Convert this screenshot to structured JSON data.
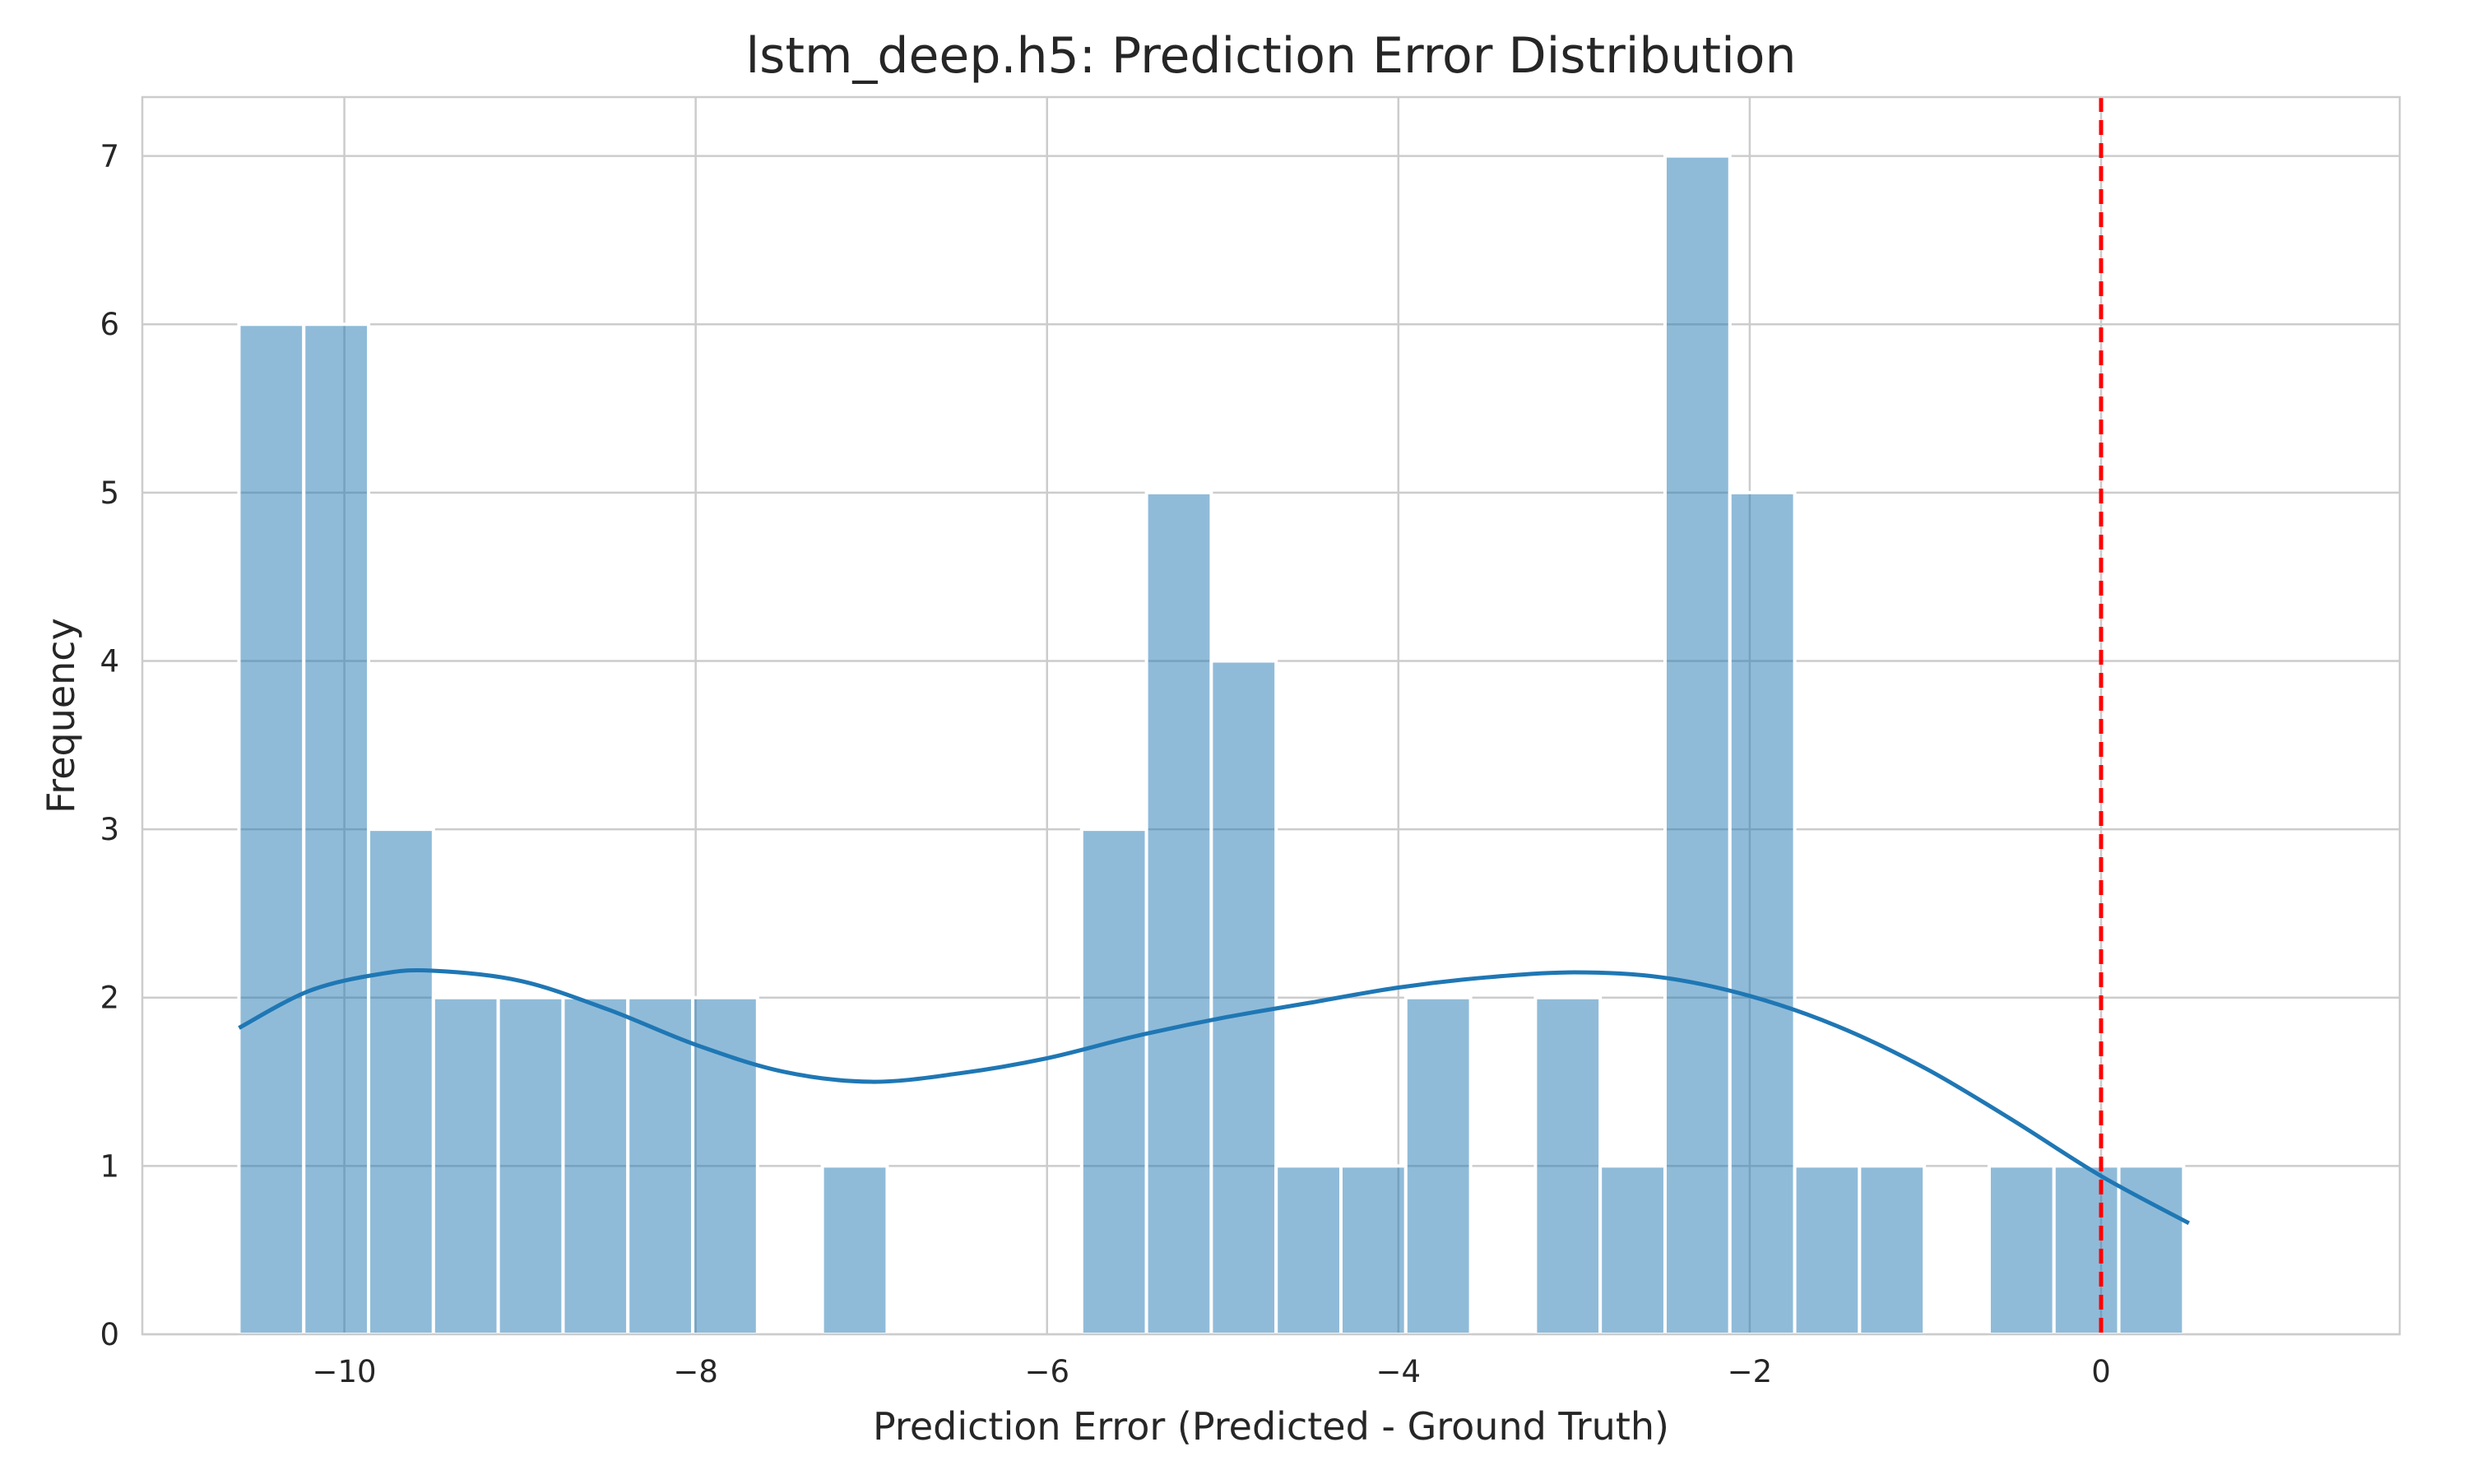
{
  "chart_data": {
    "type": "bar",
    "title": "lstm_deep.h5: Prediction Error Distribution",
    "xlabel": "Prediction Error (Predicted - Ground Truth)",
    "ylabel": "Frequency",
    "xlim": [
      -11.15,
      1.7
    ],
    "ylim": [
      0,
      7.35
    ],
    "x_ticks": [
      -10,
      -8,
      -6,
      -4,
      -2,
      0
    ],
    "x_tick_labels": [
      "−10",
      "−8",
      "−6",
      "−4",
      "−2",
      "0"
    ],
    "y_ticks": [
      0,
      1,
      2,
      3,
      4,
      5,
      6,
      7
    ],
    "y_tick_labels": [
      "0",
      "1",
      "2",
      "3",
      "4",
      "5",
      "6",
      "7"
    ],
    "grid": true,
    "bins": {
      "start": -10.6,
      "width": 0.369,
      "counts": [
        6,
        6,
        3,
        2,
        2,
        2,
        2,
        2,
        0,
        1,
        0,
        0,
        0,
        3,
        5,
        4,
        1,
        1,
        2,
        0,
        2,
        1,
        7,
        5,
        1,
        1,
        0,
        1,
        1,
        1
      ]
    },
    "kde": {
      "x": [
        -10.6,
        -10.2,
        -9.8,
        -9.5,
        -9.0,
        -8.5,
        -8.0,
        -7.5,
        -7.0,
        -6.5,
        -6.0,
        -5.5,
        -5.0,
        -4.5,
        -4.0,
        -3.5,
        -3.0,
        -2.5,
        -2.0,
        -1.5,
        -1.0,
        -0.5,
        0.0,
        0.5
      ],
      "y": [
        1.82,
        2.04,
        2.14,
        2.16,
        2.1,
        1.93,
        1.72,
        1.56,
        1.5,
        1.55,
        1.64,
        1.77,
        1.88,
        1.97,
        2.06,
        2.12,
        2.15,
        2.12,
        2.01,
        1.83,
        1.58,
        1.27,
        0.94,
        0.66
      ]
    },
    "reference_line": {
      "x": 0,
      "color": "#ff0000",
      "style": "dashed"
    },
    "colors": {
      "bars": "#1f77b4",
      "kde": "#1f77b4",
      "grid": "#cccccc"
    }
  }
}
